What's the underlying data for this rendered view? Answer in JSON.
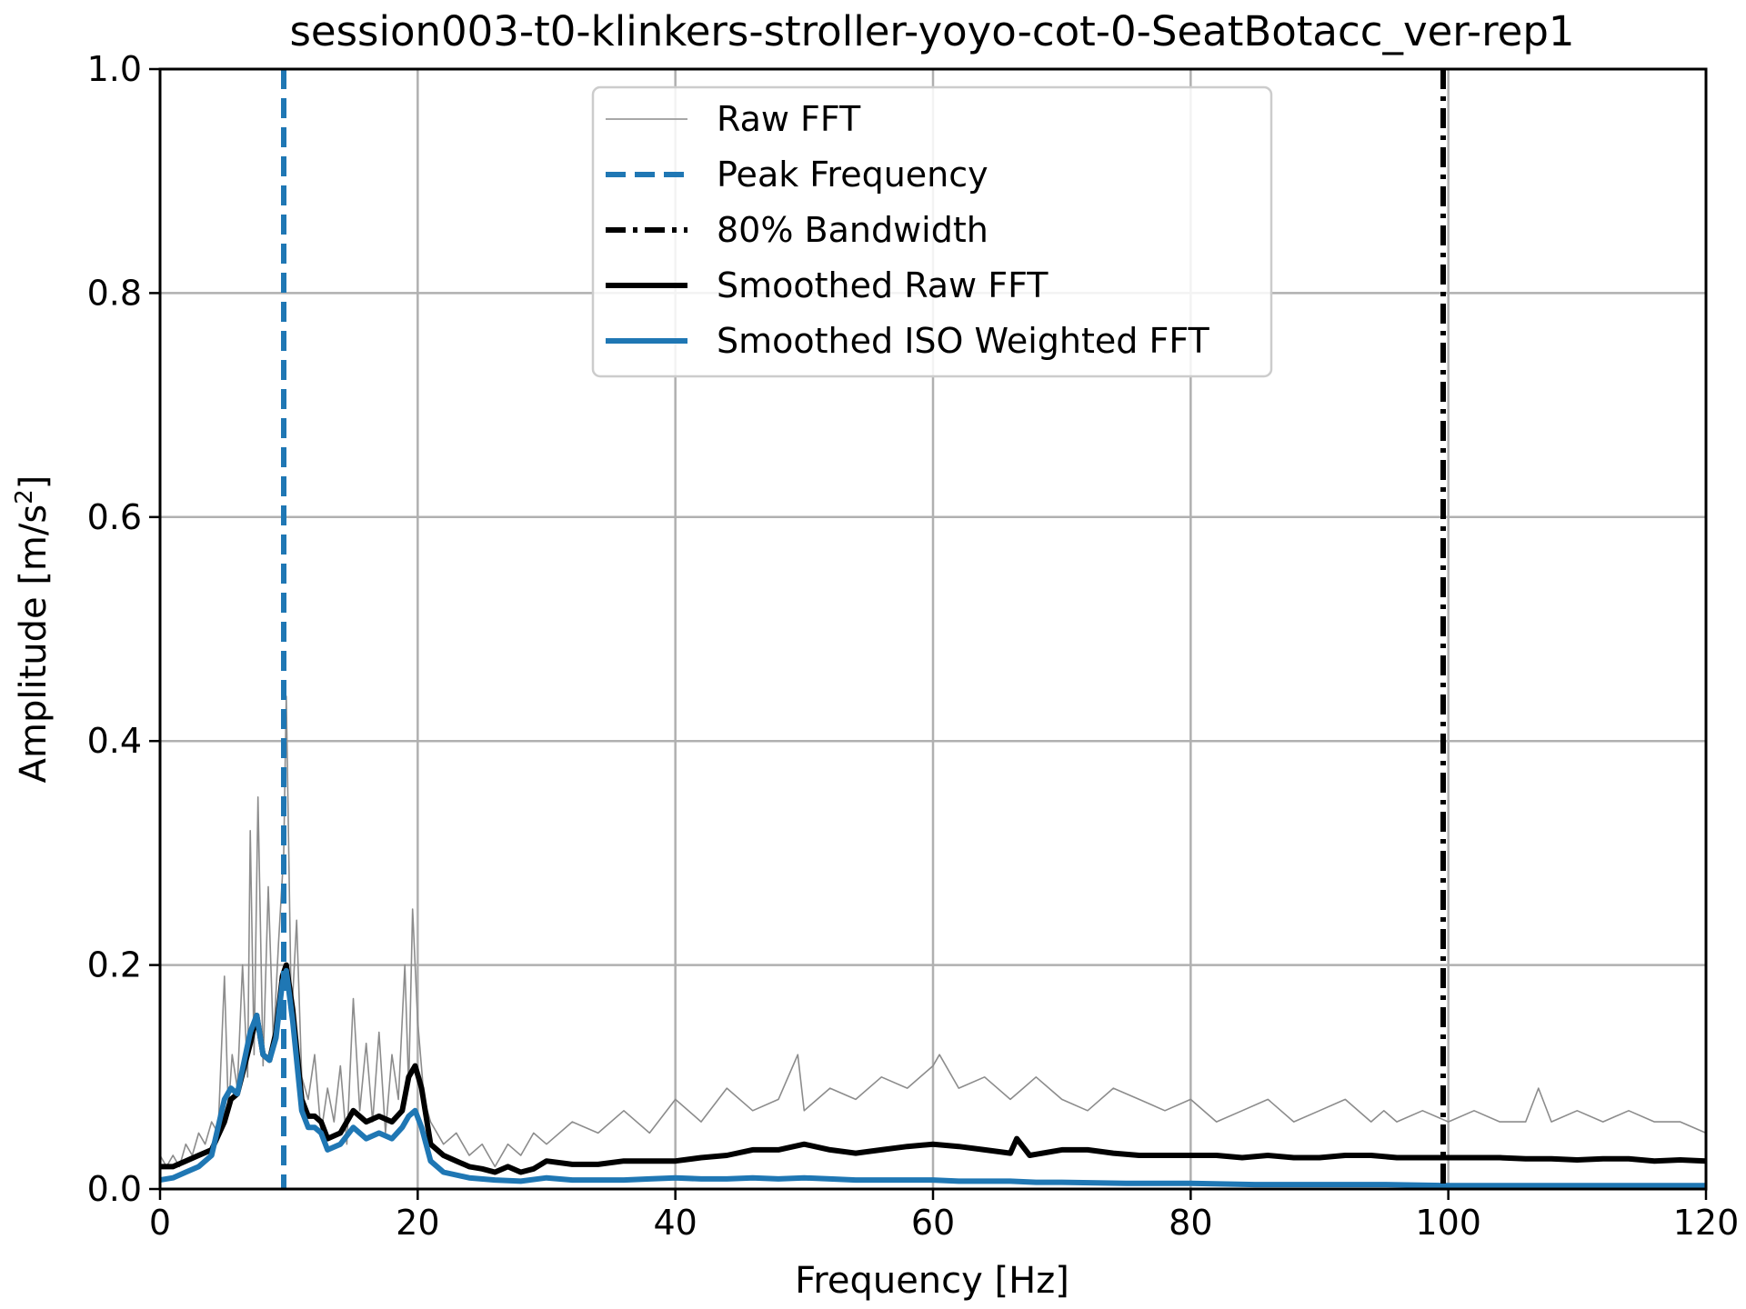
{
  "chart_data": {
    "type": "line",
    "title": "session003-t0-klinkers-stroller-yoyo-cot-0-SeatBotacc_ver-rep1",
    "xlabel": "Frequency [Hz]",
    "ylabel_main": "Amplitude [m/s",
    "ylabel_sup": "2",
    "ylabel_end": "]",
    "xlim": [
      0,
      120
    ],
    "ylim": [
      0,
      1
    ],
    "xticks": [
      0,
      20,
      40,
      60,
      80,
      100,
      120
    ],
    "xtick_labels": [
      "0",
      "20",
      "40",
      "60",
      "80",
      "100",
      "120"
    ],
    "yticks": [
      0,
      0.2,
      0.4,
      0.6,
      0.8,
      1.0
    ],
    "ytick_labels": [
      "0.0",
      "0.2",
      "0.4",
      "0.6",
      "0.8",
      "1.0"
    ],
    "grid": true,
    "legend_position": "upper center",
    "peak_frequency": 9.6,
    "bandwidth_80": 99.6,
    "series": [
      {
        "name": "Raw FFT",
        "color": "#8c8c8c",
        "style": "solid-thin",
        "x": [
          0,
          0.5,
          1,
          1.5,
          2,
          2.5,
          3,
          3.5,
          4,
          4.5,
          5,
          5.3,
          5.6,
          6,
          6.4,
          6.8,
          7,
          7.3,
          7.6,
          8,
          8.4,
          8.8,
          9.2,
          9.6,
          9.8,
          10.2,
          10.6,
          11,
          11.5,
          12,
          12.5,
          13,
          13.5,
          14,
          14.5,
          15,
          15.5,
          16,
          16.5,
          17,
          17.5,
          18,
          18.5,
          19,
          19.3,
          19.6,
          20,
          20.5,
          21,
          22,
          23,
          24,
          25,
          26,
          27,
          28,
          29,
          30,
          32,
          34,
          36,
          38,
          40,
          42,
          44,
          46,
          48,
          49.5,
          50,
          52,
          54,
          56,
          58,
          60,
          60.5,
          62,
          64,
          66,
          67,
          68,
          70,
          72,
          74,
          76,
          78,
          80,
          82,
          84,
          86,
          88,
          90,
          92,
          94,
          95,
          96,
          98,
          100,
          102,
          104,
          106,
          107,
          108,
          110,
          112,
          114,
          116,
          118,
          120
        ],
        "values": [
          0.03,
          0.02,
          0.03,
          0.02,
          0.04,
          0.03,
          0.05,
          0.04,
          0.06,
          0.05,
          0.19,
          0.07,
          0.12,
          0.09,
          0.2,
          0.1,
          0.32,
          0.12,
          0.35,
          0.11,
          0.27,
          0.13,
          0.22,
          0.3,
          0.44,
          0.15,
          0.24,
          0.1,
          0.08,
          0.12,
          0.05,
          0.09,
          0.06,
          0.11,
          0.04,
          0.17,
          0.07,
          0.13,
          0.06,
          0.14,
          0.05,
          0.12,
          0.08,
          0.2,
          0.09,
          0.25,
          0.15,
          0.08,
          0.06,
          0.04,
          0.05,
          0.03,
          0.04,
          0.02,
          0.04,
          0.03,
          0.05,
          0.04,
          0.06,
          0.05,
          0.07,
          0.05,
          0.08,
          0.06,
          0.09,
          0.07,
          0.08,
          0.12,
          0.07,
          0.09,
          0.08,
          0.1,
          0.09,
          0.11,
          0.12,
          0.09,
          0.1,
          0.08,
          0.09,
          0.1,
          0.08,
          0.07,
          0.09,
          0.08,
          0.07,
          0.08,
          0.06,
          0.07,
          0.08,
          0.06,
          0.07,
          0.08,
          0.06,
          0.07,
          0.06,
          0.07,
          0.06,
          0.07,
          0.06,
          0.06,
          0.09,
          0.06,
          0.07,
          0.06,
          0.07,
          0.06,
          0.06,
          0.05
        ]
      },
      {
        "name": "Smoothed Raw FFT",
        "color": "#000000",
        "style": "solid-thick",
        "x": [
          0,
          1,
          2,
          3,
          4,
          5,
          5.5,
          6,
          7,
          7.5,
          8,
          8.5,
          9,
          9.5,
          9.8,
          10.3,
          11,
          11.5,
          12,
          12.5,
          13,
          14,
          15,
          16,
          17,
          18,
          18.8,
          19.3,
          19.8,
          20.3,
          21,
          22,
          23,
          24,
          25,
          26,
          27,
          28,
          29,
          30,
          32,
          34,
          36,
          38,
          40,
          42,
          44,
          46,
          48,
          50,
          52,
          54,
          56,
          58,
          60,
          62,
          64,
          66,
          66.5,
          67.5,
          70,
          72,
          74,
          76,
          78,
          80,
          82,
          84,
          86,
          88,
          90,
          92,
          94,
          96,
          98,
          100,
          102,
          104,
          106,
          108,
          110,
          112,
          114,
          116,
          118,
          120
        ],
        "values": [
          0.02,
          0.02,
          0.025,
          0.03,
          0.035,
          0.06,
          0.08,
          0.085,
          0.13,
          0.155,
          0.12,
          0.115,
          0.14,
          0.19,
          0.2,
          0.16,
          0.08,
          0.065,
          0.065,
          0.06,
          0.045,
          0.05,
          0.07,
          0.06,
          0.065,
          0.06,
          0.07,
          0.1,
          0.11,
          0.09,
          0.04,
          0.03,
          0.025,
          0.02,
          0.018,
          0.015,
          0.02,
          0.015,
          0.018,
          0.025,
          0.022,
          0.022,
          0.025,
          0.025,
          0.025,
          0.028,
          0.03,
          0.035,
          0.035,
          0.04,
          0.035,
          0.032,
          0.035,
          0.038,
          0.04,
          0.038,
          0.035,
          0.032,
          0.045,
          0.03,
          0.035,
          0.035,
          0.032,
          0.03,
          0.03,
          0.03,
          0.03,
          0.028,
          0.03,
          0.028,
          0.028,
          0.03,
          0.03,
          0.028,
          0.028,
          0.028,
          0.028,
          0.028,
          0.027,
          0.027,
          0.026,
          0.027,
          0.027,
          0.025,
          0.026,
          0.025
        ]
      },
      {
        "name": "Smoothed ISO Weighted FFT",
        "color": "#1f77b4",
        "style": "solid-thick",
        "x": [
          0,
          1,
          2,
          3,
          4,
          5,
          5.5,
          6,
          7,
          7.5,
          8,
          8.5,
          9,
          9.5,
          9.8,
          10.3,
          11,
          11.5,
          12,
          12.5,
          13,
          14,
          15,
          16,
          17,
          18,
          18.8,
          19.3,
          19.8,
          20.3,
          21,
          22,
          24,
          26,
          28,
          30,
          32,
          34,
          36,
          38,
          40,
          42,
          44,
          46,
          48,
          50,
          52,
          54,
          56,
          58,
          60,
          62,
          64,
          66,
          68,
          70,
          75,
          80,
          85,
          90,
          95,
          100,
          105,
          110,
          115,
          120
        ],
        "values": [
          0.008,
          0.01,
          0.015,
          0.02,
          0.03,
          0.08,
          0.09,
          0.085,
          0.14,
          0.155,
          0.12,
          0.115,
          0.135,
          0.185,
          0.195,
          0.15,
          0.07,
          0.055,
          0.055,
          0.05,
          0.035,
          0.04,
          0.055,
          0.045,
          0.05,
          0.045,
          0.055,
          0.065,
          0.07,
          0.055,
          0.025,
          0.015,
          0.01,
          0.008,
          0.007,
          0.01,
          0.008,
          0.008,
          0.008,
          0.009,
          0.01,
          0.009,
          0.009,
          0.01,
          0.009,
          0.01,
          0.009,
          0.008,
          0.008,
          0.008,
          0.008,
          0.007,
          0.007,
          0.007,
          0.006,
          0.006,
          0.005,
          0.005,
          0.004,
          0.004,
          0.004,
          0.003,
          0.003,
          0.003,
          0.003,
          0.003
        ]
      }
    ],
    "legend": [
      {
        "label": "Raw FFT",
        "color": "#8c8c8c",
        "style": "solid-thin"
      },
      {
        "label": "Peak Frequency",
        "color": "#1f77b4",
        "style": "dashed"
      },
      {
        "label": "80% Bandwidth",
        "color": "#000000",
        "style": "dashdot"
      },
      {
        "label": "Smoothed Raw FFT",
        "color": "#000000",
        "style": "solid-thick"
      },
      {
        "label": "Smoothed ISO Weighted FFT",
        "color": "#1f77b4",
        "style": "solid-thick"
      }
    ]
  }
}
